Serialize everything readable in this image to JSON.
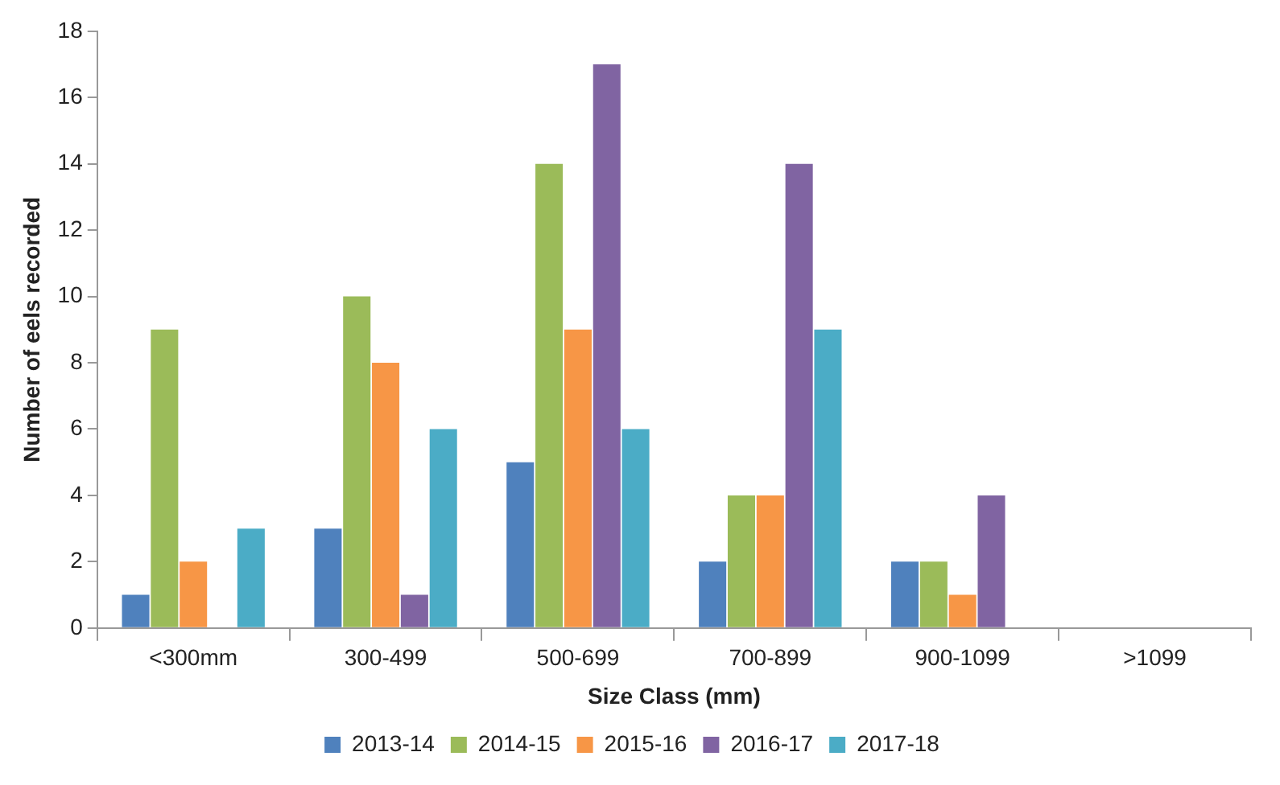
{
  "chart_data": {
    "type": "bar",
    "xlabel": "Size Class (mm)",
    "ylabel": "Number of eels recorded",
    "categories": [
      "<300mm",
      "300-499",
      "500-699",
      "700-899",
      "900-1099",
      ">1099"
    ],
    "series": [
      {
        "name": "2013-14",
        "color": "#4f81bd",
        "values": [
          1,
          3,
          5,
          2,
          2,
          0
        ]
      },
      {
        "name": "2014-15",
        "color": "#9bbb59",
        "values": [
          9,
          10,
          14,
          4,
          2,
          0
        ]
      },
      {
        "name": "2015-16",
        "color": "#f79646",
        "values": [
          2,
          8,
          9,
          4,
          1,
          0
        ]
      },
      {
        "name": "2016-17",
        "color": "#8064a2",
        "values": [
          0,
          1,
          17,
          14,
          4,
          0
        ]
      },
      {
        "name": "2017-18",
        "color": "#4bacc6",
        "values": [
          3,
          6,
          6,
          9,
          0,
          0
        ]
      }
    ],
    "ylim": [
      0,
      18
    ],
    "yticks": [
      0,
      2,
      4,
      6,
      8,
      10,
      12,
      14,
      16,
      18
    ],
    "grid": false,
    "legend": "bottom"
  }
}
